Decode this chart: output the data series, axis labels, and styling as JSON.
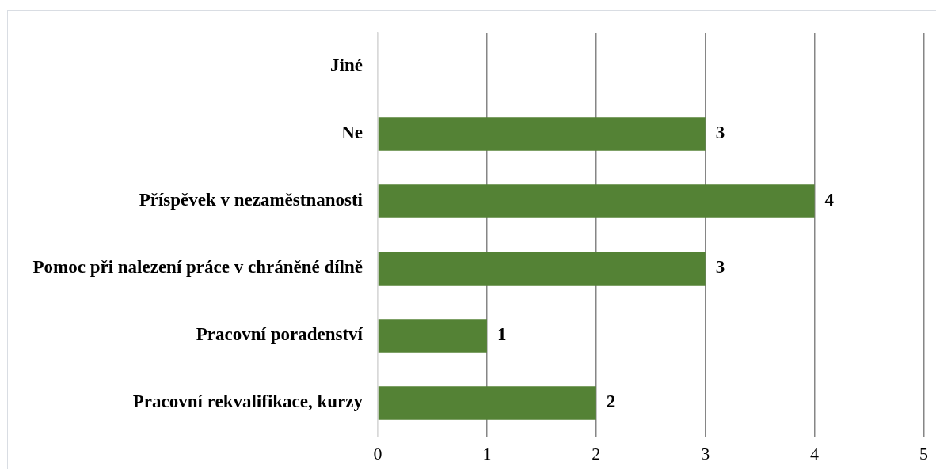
{
  "chart_data": {
    "type": "bar",
    "orientation": "horizontal",
    "categories": [
      "Jiné",
      "Ne",
      "Příspěvek v nezaměstnanosti",
      "Pomoc při nalezení práce v chráněné dílně",
      "Pracovní poradenství",
      "Pracovní rekvalifikace, kurzy"
    ],
    "values": [
      null,
      3,
      4,
      3,
      1,
      2
    ],
    "color": "#548235",
    "xlim": [
      0,
      5
    ],
    "xticks": [
      0,
      1,
      2,
      3,
      4,
      5
    ],
    "grid": "x",
    "data_labels": true
  }
}
